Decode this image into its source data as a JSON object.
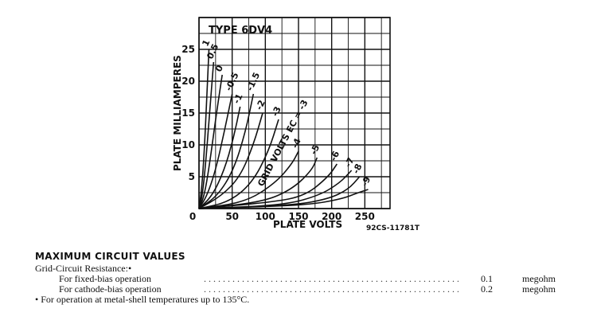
{
  "chart_data": {
    "type": "line",
    "title": "TYPE 6DV4",
    "xlabel": "PLATE VOLTS",
    "ylabel": "PLATE MILLIAMPERES",
    "xlim": [
      0,
      250
    ],
    "ylim": [
      0,
      25
    ],
    "x_ticks": [
      "0",
      "50",
      "100",
      "150",
      "200",
      "250"
    ],
    "y_ticks": [
      "5",
      "10",
      "15",
      "20",
      "25"
    ],
    "grid": true,
    "curve_annotation": "GRID VOLTS EC = -3",
    "code": "92CS-11781T",
    "series": [
      {
        "name": "1",
        "values": [
          [
            0,
            0
          ],
          [
            4,
            3
          ],
          [
            8,
            9
          ],
          [
            12,
            18
          ],
          [
            15,
            25
          ]
        ]
      },
      {
        "name": "0.5",
        "values": [
          [
            0,
            0
          ],
          [
            5,
            2
          ],
          [
            10,
            7
          ],
          [
            16,
            15
          ],
          [
            22,
            23
          ]
        ]
      },
      {
        "name": "0",
        "values": [
          [
            0,
            0
          ],
          [
            8,
            2
          ],
          [
            16,
            7
          ],
          [
            25,
            14
          ],
          [
            35,
            21
          ]
        ]
      },
      {
        "name": "-0.5",
        "values": [
          [
            0,
            0
          ],
          [
            12,
            2
          ],
          [
            25,
            6
          ],
          [
            38,
            12
          ],
          [
            50,
            18
          ]
        ]
      },
      {
        "name": "-1",
        "values": [
          [
            0,
            0
          ],
          [
            20,
            2
          ],
          [
            38,
            6
          ],
          [
            52,
            11
          ],
          [
            62,
            16
          ]
        ]
      },
      {
        "name": "-1.5",
        "values": [
          [
            0,
            0
          ],
          [
            28,
            2
          ],
          [
            52,
            6
          ],
          [
            70,
            12
          ],
          [
            82,
            18
          ]
        ]
      },
      {
        "name": "-2",
        "values": [
          [
            0,
            0
          ],
          [
            34,
            2
          ],
          [
            62,
            5
          ],
          [
            82,
            10
          ],
          [
            96,
            15
          ]
        ]
      },
      {
        "name": "-3",
        "values": [
          [
            0,
            0
          ],
          [
            45,
            1
          ],
          [
            80,
            4
          ],
          [
            105,
            9
          ],
          [
            120,
            14
          ]
        ]
      },
      {
        "name": "-4",
        "values": [
          [
            0,
            0
          ],
          [
            70,
            1
          ],
          [
            115,
            4
          ],
          [
            140,
            7
          ],
          [
            150,
            9
          ]
        ]
      },
      {
        "name": "-5",
        "values": [
          [
            0,
            0
          ],
          [
            95,
            1
          ],
          [
            140,
            3
          ],
          [
            170,
            6
          ],
          [
            178,
            8
          ]
        ]
      },
      {
        "name": "-6",
        "values": [
          [
            0,
            0
          ],
          [
            110,
            1
          ],
          [
            160,
            2
          ],
          [
            195,
            5
          ],
          [
            208,
            7
          ]
        ]
      },
      {
        "name": "-7",
        "values": [
          [
            0,
            0
          ],
          [
            125,
            0.5
          ],
          [
            180,
            2
          ],
          [
            212,
            4
          ],
          [
            230,
            6
          ]
        ]
      },
      {
        "name": "-8",
        "values": [
          [
            0,
            0
          ],
          [
            140,
            0.5
          ],
          [
            195,
            1.5
          ],
          [
            225,
            3
          ],
          [
            242,
            5
          ]
        ]
      },
      {
        "name": "-9",
        "values": [
          [
            0,
            0
          ],
          [
            160,
            0.5
          ],
          [
            215,
            1.5
          ],
          [
            240,
            2.5
          ],
          [
            255,
            3
          ]
        ]
      }
    ]
  },
  "circuit": {
    "heading": "MAXIMUM CIRCUIT VALUES",
    "grid_resistance_label": "Grid-Circuit Resistance:•",
    "rows": [
      {
        "label": "For fixed-bias operation",
        "value": "0.1",
        "unit": "megohm"
      },
      {
        "label": "For cathode-bias operation",
        "value": "0.2",
        "unit": "megohm"
      }
    ],
    "footnote": "• For operation at metal-shell temperatures up to 135°C."
  }
}
